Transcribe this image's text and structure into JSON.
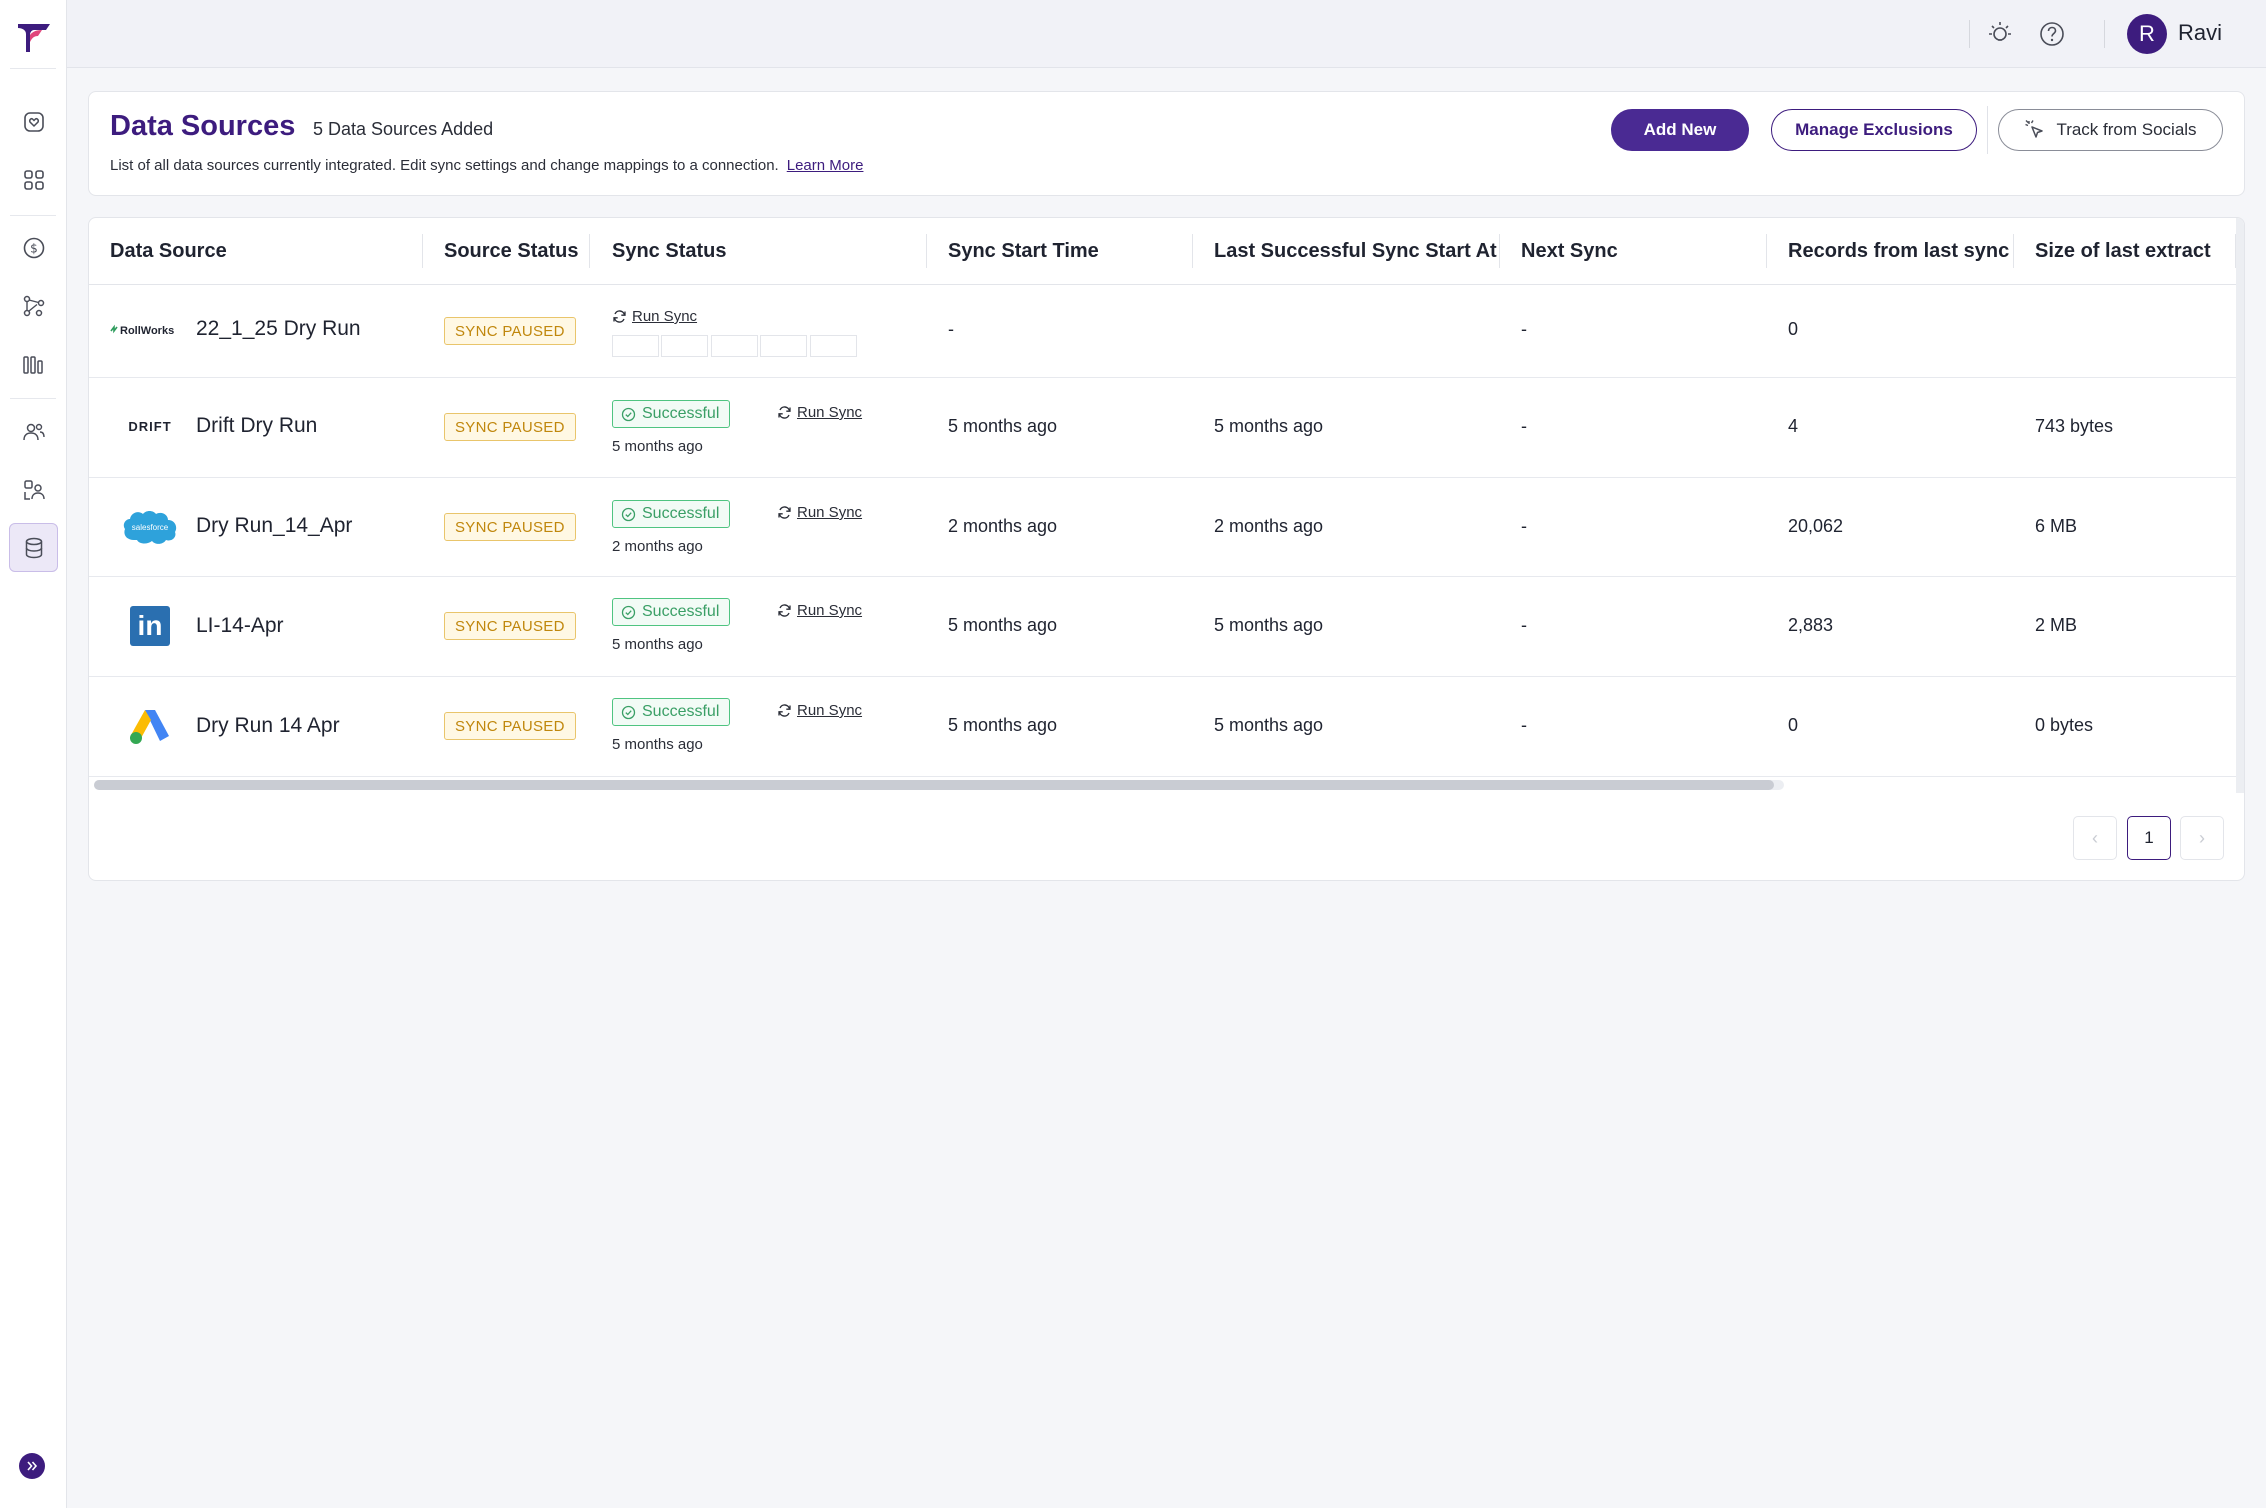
{
  "sidebar": {
    "nav": [
      {
        "name": "dashboard",
        "icon": "heart-shield-icon"
      },
      {
        "name": "apps",
        "icon": "grid-icon"
      },
      {
        "name": "revenue",
        "icon": "dollar-icon"
      },
      {
        "name": "journeys",
        "icon": "flow-icon"
      },
      {
        "name": "reports",
        "icon": "bar-chart-icon"
      },
      {
        "name": "audiences",
        "icon": "users-icon"
      },
      {
        "name": "accounts",
        "icon": "account-icon"
      },
      {
        "name": "data-sources",
        "icon": "database-icon",
        "active": true
      }
    ]
  },
  "topbar": {
    "user_initial": "R",
    "user_name": "Ravi"
  },
  "header": {
    "title": "Data Sources",
    "count_text": "5 Data Sources Added",
    "description": "List of all data sources currently integrated. Edit sync settings and change mappings to a connection.",
    "learn_more": "Learn More",
    "add_new": "Add New",
    "manage_exclusions": "Manage Exclusions",
    "track_socials": "Track from Socials"
  },
  "table": {
    "columns": [
      "Data Source",
      "Source Status",
      "Sync Status",
      "Sync Start Time",
      "Last Successful Sync Start At",
      "Next Sync",
      "Records from last sync",
      "Size of last extract"
    ],
    "rows": [
      {
        "logo": "RollWorks",
        "name": "22_1_25 Dry Run",
        "source_status": "SYNC PAUSED",
        "sync_status": "",
        "sync_time": "",
        "run_sync": "Run Sync",
        "start_time": "-",
        "last_success": "",
        "next_sync": "-",
        "records": "0",
        "size": ""
      },
      {
        "logo": "DRIFT",
        "name": "Drift Dry Run",
        "source_status": "SYNC PAUSED",
        "sync_status": "Successful",
        "sync_time": "5 months ago",
        "run_sync": "Run Sync",
        "start_time": "5 months ago",
        "last_success": "5 months ago",
        "next_sync": "-",
        "records": "4",
        "size": "743 bytes"
      },
      {
        "logo": "salesforce",
        "name": "Dry Run_14_Apr",
        "source_status": "SYNC PAUSED",
        "sync_status": "Successful",
        "sync_time": "2 months ago",
        "run_sync": "Run Sync",
        "start_time": "2 months ago",
        "last_success": "2 months ago",
        "next_sync": "-",
        "records": "20,062",
        "size": "6 MB"
      },
      {
        "logo": "in",
        "name": "LI-14-Apr",
        "source_status": "SYNC PAUSED",
        "sync_status": "Successful",
        "sync_time": "5 months ago",
        "run_sync": "Run Sync",
        "start_time": "5 months ago",
        "last_success": "5 months ago",
        "next_sync": "-",
        "records": "2,883",
        "size": "2 MB"
      },
      {
        "logo": "",
        "name": "Dry Run 14 Apr",
        "source_status": "SYNC PAUSED",
        "sync_status": "Successful",
        "sync_time": "5 months ago",
        "run_sync": "Run Sync",
        "start_time": "5 months ago",
        "last_success": "5 months ago",
        "next_sync": "-",
        "records": "0",
        "size": "0 bytes"
      }
    ]
  },
  "pagination": {
    "current_page": "1",
    "prev": "‹",
    "next": "›"
  },
  "colors": {
    "brand": "#3d1c7e",
    "paused": "#c0870d",
    "success": "#3a9f66"
  }
}
